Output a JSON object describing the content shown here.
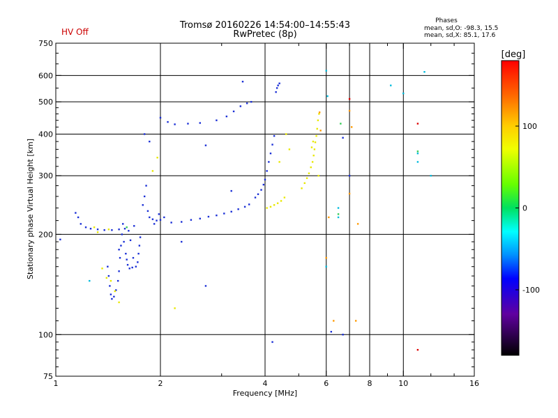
{
  "header": {
    "status": "HV Off",
    "title_line1": "Tromsø 20160226 14:54:00–14:55:43",
    "title_line2": "RwPretec (8p)",
    "phases_title": "Phases",
    "phases_o": "mean, sd,O: -98.3, 15.5",
    "phases_x": "mean, sd,X: 85.1, 17.6"
  },
  "colors": {
    "status": "#cc0000",
    "blue": "#1a2fd6",
    "yellow": "#e8e800",
    "orange": "#ff9900",
    "cyan": "#00bbdd",
    "green": "#33cc55",
    "red": "#dd0000"
  },
  "chart_data": {
    "type": "scatter",
    "title": "Tromsø 20160226 14:54:00–14:55:43",
    "subtitle": "RwPretec (8p)",
    "xlabel": "Frequency [MHz]",
    "ylabel": "Stationary phase Virtual Height [km]",
    "xscale": "log",
    "yscale": "log",
    "xlim": [
      1,
      16
    ],
    "ylim": [
      75,
      750
    ],
    "xticks": [
      1,
      2,
      4,
      6,
      8,
      10,
      16
    ],
    "xtick_labels": [
      "1",
      "2",
      "4",
      "6",
      "8",
      "10",
      "16"
    ],
    "xgrid": [
      2,
      4,
      6,
      7,
      8,
      10
    ],
    "xminor": [
      3,
      5,
      7,
      9,
      12,
      14
    ],
    "yticks": [
      75,
      100,
      200,
      300,
      400,
      500,
      600,
      750
    ],
    "ytick_labels": [
      "75",
      "100",
      "200",
      "300",
      "400",
      "500",
      "600",
      "750"
    ],
    "ygrid": [
      100,
      200,
      300,
      400,
      500,
      600
    ],
    "colorbar": {
      "label": "[deg]",
      "range": [
        -180,
        180
      ],
      "ticks": [
        100,
        0,
        -100
      ],
      "tick_labels": [
        "100",
        "0",
        "-100"
      ]
    },
    "series": [
      {
        "color": "blue",
        "points": [
          [
            1.14,
            232
          ],
          [
            1.16,
            225
          ],
          [
            1.18,
            215
          ],
          [
            1.22,
            210
          ],
          [
            1.26,
            208
          ],
          [
            1.32,
            207
          ],
          [
            1.38,
            206
          ],
          [
            1.45,
            206
          ],
          [
            1.52,
            207
          ],
          [
            1.58,
            208
          ],
          [
            1.68,
            212
          ],
          [
            1.41,
            160
          ],
          [
            1.42,
            150
          ],
          [
            1.43,
            140
          ],
          [
            1.44,
            132
          ],
          [
            1.45,
            128
          ],
          [
            1.47,
            130
          ],
          [
            1.49,
            136
          ],
          [
            1.51,
            145
          ],
          [
            1.52,
            155
          ],
          [
            1.53,
            170
          ],
          [
            1.54,
            185
          ],
          [
            1.55,
            200
          ],
          [
            1.57,
            190
          ],
          [
            1.59,
            175
          ],
          [
            1.61,
            162
          ],
          [
            1.63,
            158
          ],
          [
            1.66,
            159
          ],
          [
            1.7,
            160
          ],
          [
            1.72,
            165
          ],
          [
            1.73,
            175
          ],
          [
            1.74,
            185
          ],
          [
            1.75,
            196
          ],
          [
            1.62,
            205
          ],
          [
            1.56,
            215
          ],
          [
            1.52,
            180
          ],
          [
            1.6,
            168
          ],
          [
            1.67,
            170
          ],
          [
            1.64,
            192
          ],
          [
            1.78,
            245
          ],
          [
            1.8,
            260
          ],
          [
            1.82,
            280
          ],
          [
            1.84,
            235
          ],
          [
            1.86,
            225
          ],
          [
            1.9,
            222
          ],
          [
            1.95,
            220
          ],
          [
            2.0,
            221
          ],
          [
            2.05,
            225
          ],
          [
            1.98,
            230
          ],
          [
            1.92,
            215
          ],
          [
            2.15,
            217
          ],
          [
            2.3,
            218
          ],
          [
            2.45,
            221
          ],
          [
            2.6,
            223
          ],
          [
            2.75,
            226
          ],
          [
            2.9,
            228
          ],
          [
            3.05,
            231
          ],
          [
            3.2,
            234
          ],
          [
            3.35,
            238
          ],
          [
            3.5,
            242
          ],
          [
            3.6,
            246
          ],
          [
            3.75,
            258
          ],
          [
            3.82,
            264
          ],
          [
            3.9,
            272
          ],
          [
            3.96,
            282
          ],
          [
            4.0,
            292
          ],
          [
            4.05,
            310
          ],
          [
            4.1,
            330
          ],
          [
            4.15,
            350
          ],
          [
            4.2,
            372
          ],
          [
            4.25,
            395
          ],
          [
            2.0,
            448
          ],
          [
            2.1,
            435
          ],
          [
            2.2,
            428
          ],
          [
            2.4,
            430
          ],
          [
            2.6,
            432
          ],
          [
            2.9,
            440
          ],
          [
            3.1,
            452
          ],
          [
            3.25,
            468
          ],
          [
            3.4,
            485
          ],
          [
            3.55,
            495
          ],
          [
            3.65,
            500
          ],
          [
            4.3,
            535
          ],
          [
            4.33,
            550
          ],
          [
            4.36,
            560
          ],
          [
            4.4,
            568
          ],
          [
            3.45,
            575
          ],
          [
            1.8,
            400
          ],
          [
            1.86,
            380
          ],
          [
            2.7,
            370
          ],
          [
            2.7,
            140
          ],
          [
            3.2,
            270
          ],
          [
            6.2,
            102
          ],
          [
            6.7,
            100
          ],
          [
            7.0,
            300
          ],
          [
            4.2,
            95
          ],
          [
            6.7,
            390
          ],
          [
            2.3,
            190
          ],
          [
            1.03,
            193
          ]
        ]
      },
      {
        "color": "yellow",
        "points": [
          [
            1.4,
            148
          ],
          [
            1.44,
            145
          ],
          [
            1.48,
            135
          ],
          [
            1.52,
            125
          ],
          [
            1.36,
            158
          ],
          [
            1.32,
            203
          ],
          [
            1.42,
            207
          ],
          [
            1.29,
            210
          ],
          [
            4.05,
            240
          ],
          [
            4.15,
            242
          ],
          [
            4.25,
            245
          ],
          [
            4.35,
            248
          ],
          [
            4.45,
            252
          ],
          [
            4.55,
            258
          ],
          [
            5.1,
            275
          ],
          [
            5.2,
            285
          ],
          [
            5.28,
            295
          ],
          [
            5.35,
            305
          ],
          [
            5.42,
            318
          ],
          [
            5.48,
            330
          ],
          [
            5.52,
            345
          ],
          [
            5.55,
            360
          ],
          [
            5.58,
            378
          ],
          [
            5.62,
            395
          ],
          [
            5.65,
            415
          ],
          [
            5.68,
            440
          ],
          [
            5.45,
            365
          ],
          [
            5.5,
            380
          ],
          [
            5.72,
            460
          ],
          [
            4.6,
            400
          ],
          [
            4.7,
            360
          ],
          [
            4.4,
            330
          ],
          [
            1.96,
            340
          ],
          [
            1.9,
            310
          ],
          [
            2.2,
            120
          ],
          [
            5.7,
            300
          ]
        ]
      },
      {
        "color": "orange",
        "points": [
          [
            5.74,
            465
          ],
          [
            5.78,
            410
          ],
          [
            7.0,
            470
          ],
          [
            7.1,
            420
          ],
          [
            7.0,
            265
          ],
          [
            6.3,
            110
          ],
          [
            7.3,
            110
          ],
          [
            6.0,
            170
          ],
          [
            6.1,
            225
          ],
          [
            7.4,
            215
          ]
        ]
      },
      {
        "color": "cyan",
        "points": [
          [
            6.0,
            620
          ],
          [
            6.05,
            520
          ],
          [
            6.5,
            240
          ],
          [
            6.5,
            225
          ],
          [
            11.0,
            350
          ],
          [
            11.0,
            330
          ],
          [
            12.0,
            300
          ],
          [
            11.5,
            615
          ],
          [
            9.2,
            560
          ],
          [
            10.0,
            530
          ],
          [
            1.25,
            145
          ],
          [
            6.0,
            160
          ]
        ]
      },
      {
        "color": "green",
        "points": [
          [
            6.5,
            230
          ],
          [
            6.6,
            430
          ],
          [
            11.0,
            355
          ],
          [
            1.6,
            210
          ]
        ]
      },
      {
        "color": "red",
        "points": [
          [
            11.0,
            90
          ],
          [
            11.0,
            430
          ],
          [
            7.0,
            510
          ]
        ]
      }
    ]
  }
}
